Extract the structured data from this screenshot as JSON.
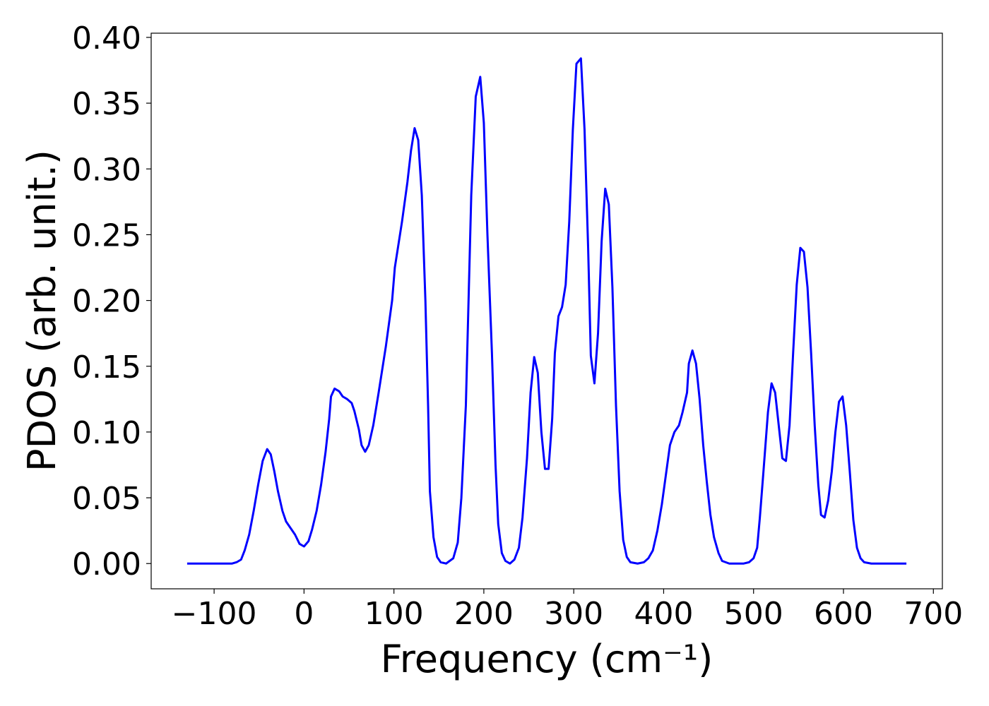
{
  "chart_data": {
    "type": "line",
    "x_label": "Frequency (cm⁻¹)",
    "y_label": "PDOS (arb. unit.)",
    "x": [
      -130,
      -80,
      -75,
      -70,
      -66,
      -61,
      -56,
      -51,
      -46,
      -41,
      -37,
      -33,
      -29,
      -24,
      -20,
      -10,
      -5,
      0,
      5,
      9,
      14,
      19,
      24,
      28,
      30,
      34,
      39,
      43,
      48,
      53,
      56,
      61,
      64,
      68,
      72,
      77,
      83,
      91,
      98,
      101,
      109,
      115,
      119,
      123,
      127,
      131,
      135,
      138,
      140,
      144,
      148,
      152,
      158,
      166,
      171,
      175,
      180,
      186,
      191,
      196,
      200,
      204,
      209,
      213,
      216,
      220,
      224,
      229,
      234,
      239,
      243,
      248,
      252,
      256,
      260,
      264,
      268,
      272,
      276,
      279,
      283,
      287,
      291,
      295,
      299,
      303,
      308,
      312,
      316,
      319,
      323,
      327,
      331,
      335,
      339,
      343,
      347,
      351,
      355,
      359,
      363,
      371,
      378,
      383,
      388,
      393,
      398,
      403,
      407,
      412,
      417,
      421,
      426,
      428,
      432,
      436,
      440,
      444,
      448,
      452,
      456,
      461,
      465,
      473,
      489,
      495,
      500,
      504,
      507,
      511,
      516,
      520,
      524,
      528,
      532,
      536,
      540,
      544,
      548,
      552,
      556,
      560,
      564,
      568,
      572,
      575,
      579,
      583,
      587,
      591,
      595,
      599,
      603,
      607,
      611,
      615,
      619,
      623,
      631,
      670
    ],
    "series": [
      {
        "name": "PDOS",
        "color": "#0000ff",
        "values": [
          0,
          0,
          0.001,
          0.003,
          0.01,
          0.022,
          0.04,
          0.06,
          0.078,
          0.087,
          0.083,
          0.07,
          0.055,
          0.04,
          0.032,
          0.022,
          0.015,
          0.013,
          0.017,
          0.026,
          0.04,
          0.06,
          0.085,
          0.11,
          0.127,
          0.133,
          0.131,
          0.127,
          0.125,
          0.122,
          0.116,
          0.102,
          0.09,
          0.085,
          0.09,
          0.105,
          0.13,
          0.165,
          0.2,
          0.225,
          0.26,
          0.29,
          0.314,
          0.331,
          0.322,
          0.28,
          0.2,
          0.12,
          0.055,
          0.02,
          0.005,
          0.001,
          0,
          0.004,
          0.016,
          0.05,
          0.12,
          0.28,
          0.355,
          0.37,
          0.335,
          0.25,
          0.16,
          0.075,
          0.03,
          0.008,
          0.002,
          0,
          0.003,
          0.012,
          0.035,
          0.08,
          0.13,
          0.157,
          0.145,
          0.1,
          0.072,
          0.072,
          0.11,
          0.16,
          0.188,
          0.195,
          0.212,
          0.26,
          0.33,
          0.38,
          0.384,
          0.33,
          0.24,
          0.158,
          0.137,
          0.175,
          0.245,
          0.285,
          0.273,
          0.21,
          0.12,
          0.055,
          0.018,
          0.005,
          0.001,
          0,
          0.001,
          0.004,
          0.01,
          0.025,
          0.045,
          0.07,
          0.09,
          0.1,
          0.105,
          0.115,
          0.13,
          0.152,
          0.162,
          0.152,
          0.125,
          0.09,
          0.062,
          0.037,
          0.02,
          0.008,
          0.002,
          0,
          0,
          0.001,
          0.004,
          0.012,
          0.035,
          0.07,
          0.115,
          0.137,
          0.13,
          0.105,
          0.08,
          0.078,
          0.105,
          0.16,
          0.212,
          0.24,
          0.237,
          0.21,
          0.16,
          0.105,
          0.06,
          0.037,
          0.035,
          0.048,
          0.07,
          0.1,
          0.123,
          0.127,
          0.105,
          0.07,
          0.033,
          0.012,
          0.004,
          0.001,
          0,
          0
        ]
      }
    ],
    "xlim": [
      -170,
      710
    ],
    "ylim": [
      -0.0192,
      0.4032
    ],
    "xticks": [
      {
        "value": -100,
        "label": "−100"
      },
      0,
      100,
      200,
      300,
      400,
      500,
      600,
      700
    ],
    "yticks": [
      {
        "value": 0,
        "label": "0.00"
      },
      {
        "value": 0.05,
        "label": "0.05"
      },
      {
        "value": 0.1,
        "label": "0.10"
      },
      {
        "value": 0.15,
        "label": "0.15"
      },
      {
        "value": 0.2,
        "label": "0.20"
      },
      {
        "value": 0.25,
        "label": "0.25"
      },
      {
        "value": 0.3,
        "label": "0.30"
      },
      {
        "value": 0.35,
        "label": "0.35"
      },
      {
        "value": 0.4,
        "label": "0.40"
      }
    ],
    "line_width": 3
  }
}
